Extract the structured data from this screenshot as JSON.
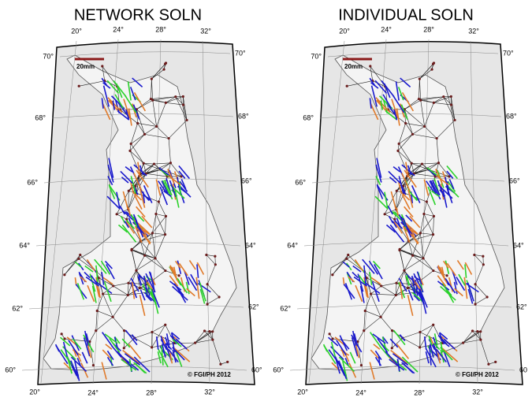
{
  "panels": [
    {
      "title": "NETWORK SOLN",
      "lon_top": [
        "20°",
        "24°",
        "28°",
        "32°"
      ],
      "lon_bottom": [
        "20°",
        "24°",
        "28°",
        "32°"
      ],
      "lat_left": [
        "70°",
        "68°",
        "66°",
        "64°",
        "62°",
        "60°"
      ],
      "lat_right": [
        "70°",
        "68°",
        "66°",
        "64°",
        "62°",
        "60°"
      ],
      "scale_label": "20mm",
      "credit": "© FGI/PH 2012"
    },
    {
      "title": "INDIVIDUAL SOLN",
      "lon_top": [
        "20°",
        "24°",
        "28°",
        "32°"
      ],
      "lon_bottom": [
        "20°",
        "24°",
        "28°",
        "32°"
      ],
      "lat_left": [
        "70°",
        "68°",
        "66°",
        "64°",
        "62°",
        "60°"
      ],
      "lat_right": [
        "70°",
        "68°",
        "66°",
        "64°",
        "62°",
        "60"
      ],
      "scale_label": "20mm",
      "credit": "© FGI/PH 2012"
    }
  ]
}
